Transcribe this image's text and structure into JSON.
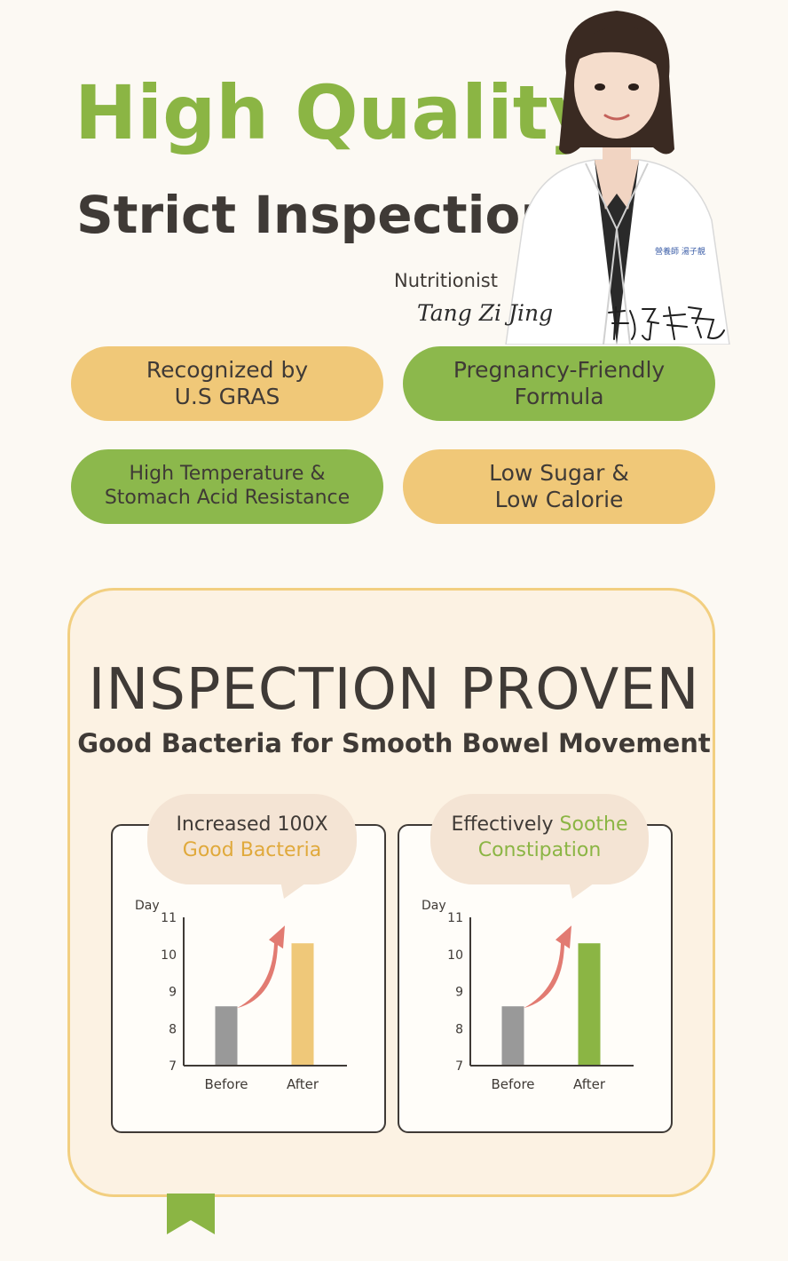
{
  "header": {
    "title": "High Quality",
    "subtitle": "Strict Inspection",
    "role": "Nutritionist",
    "signature": "Tang Zi Jing"
  },
  "features": [
    {
      "line1": "Recognized by",
      "line2": "U.S GRAS",
      "color": "#f0c878"
    },
    {
      "line1": "Pregnancy-Friendly",
      "line2": "Formula",
      "color": "#8cb84c"
    },
    {
      "line1": "High Temperature &",
      "line2": "Stomach Acid Resistance",
      "color": "#8cb84c"
    },
    {
      "line1": "Low Sugar &",
      "line2": "Low Calorie",
      "color": "#f0c878"
    }
  ],
  "inspection": {
    "title": "INSPECTION PROVEN",
    "subtitle": "Good Bacteria for Smooth Bowel Movement"
  },
  "panels": [
    {
      "bubble_line1": "Increased 100X",
      "bubble_line2": "Good Bacteria"
    },
    {
      "bubble_line1_plain": "Effectively ",
      "bubble_line1_hl": "Soothe",
      "bubble_line2": "Constipation"
    }
  ],
  "chart_data": [
    {
      "type": "bar",
      "ylabel": "Day",
      "ylim": [
        7,
        11
      ],
      "yticks": [
        7,
        8,
        9,
        10,
        11
      ],
      "categories": [
        "Before",
        "After"
      ],
      "values": [
        8.6,
        10.3
      ],
      "colors": [
        "#999999",
        "#efc879"
      ]
    },
    {
      "type": "bar",
      "ylabel": "Day",
      "ylim": [
        7,
        11
      ],
      "yticks": [
        7,
        8,
        9,
        10,
        11
      ],
      "categories": [
        "Before",
        "After"
      ],
      "values": [
        8.6,
        10.3
      ],
      "colors": [
        "#999999",
        "#8bb544"
      ]
    }
  ],
  "colors": {
    "accent_green": "#8bb544",
    "accent_yellow": "#f0c878",
    "text_dark": "#3f3a36",
    "arrow": "#e27b72",
    "background": "#fcf9f3"
  }
}
